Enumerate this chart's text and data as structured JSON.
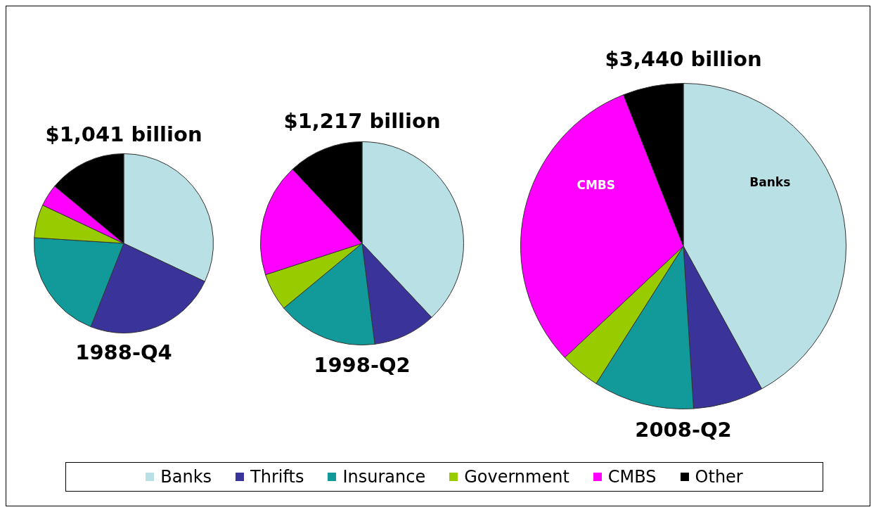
{
  "chart_data": [
    {
      "type": "pie",
      "title": "$1,041 billion",
      "xlabel": "1988-Q4",
      "categories": [
        "Banks",
        "Thrifts",
        "Insurance",
        "Government",
        "CMBS",
        "Other"
      ],
      "values": [
        32,
        24,
        20,
        6,
        4,
        14
      ],
      "colors": [
        "#b9e0e4",
        "#3a3399",
        "#129a9a",
        "#99cc00",
        "#ff00ff",
        "#000000"
      ],
      "legend": "bottom"
    },
    {
      "type": "pie",
      "title": "$1,217 billion",
      "xlabel": "1998-Q2",
      "categories": [
        null,
        null,
        null,
        null,
        null,
        null
      ],
      "values": [
        38,
        10,
        16,
        6,
        18,
        12
      ],
      "colors": [
        "#b9e0e4",
        "#3a3399",
        "#129a9a",
        "#99cc00",
        "#ff00ff",
        "#000000"
      ]
    },
    {
      "type": "pie",
      "title": "$3,440 billion",
      "xlabel": "2008-Q2",
      "categories": [
        null,
        null,
        null,
        null,
        null,
        null
      ],
      "values": [
        42,
        7,
        10,
        4,
        31,
        6
      ],
      "colors": [
        "#b9e0e4",
        "#3a3399",
        "#129a9a",
        "#99cc00",
        "#ff00ff",
        "#000000"
      ],
      "value_labels": [
        "Banks",
        null,
        null,
        null,
        "CMBS",
        null
      ]
    }
  ]
}
